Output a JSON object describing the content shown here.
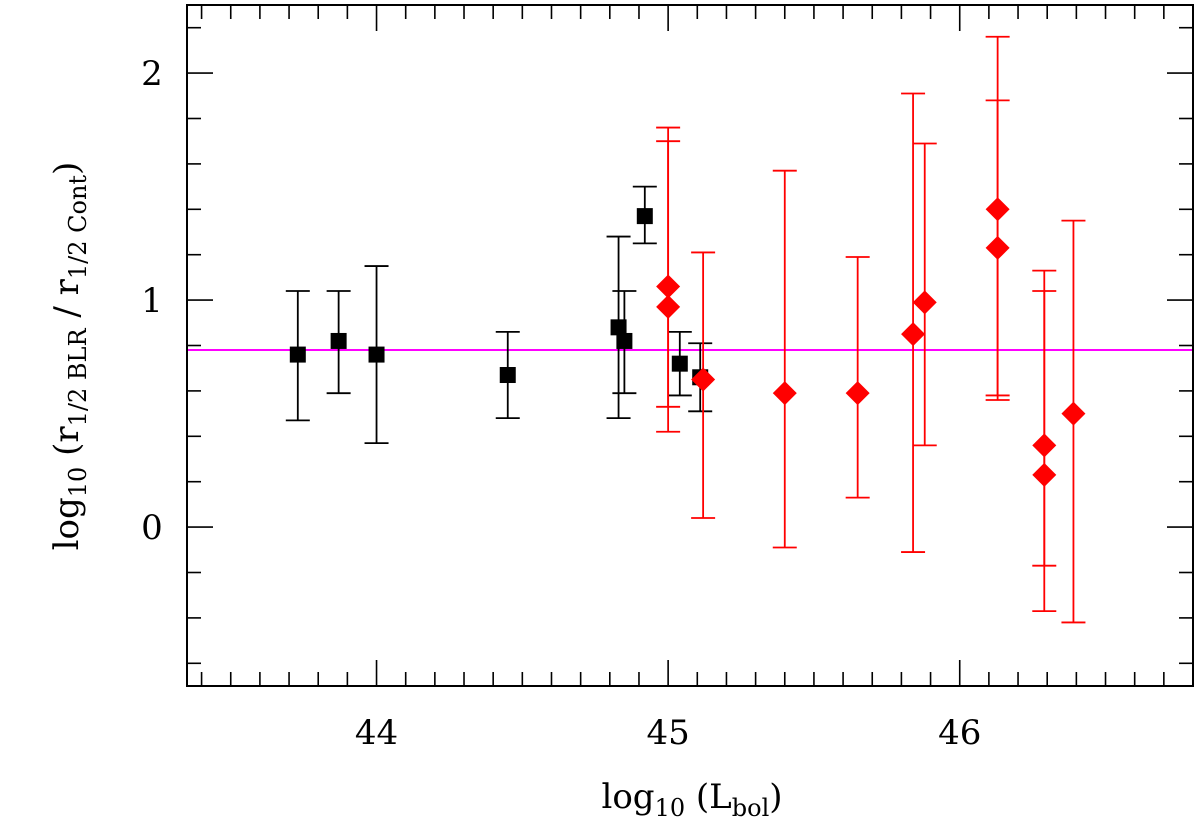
{
  "chart_data": {
    "type": "scatter",
    "title": "",
    "xlabel": {
      "base": "log",
      "sub": "10",
      "mid": " (L",
      "sub2": "bol",
      "end": ")"
    },
    "ylabel": {
      "base": "log",
      "sub": "10",
      "p1": " (r",
      "sub2": "1/2 BLR",
      "p2": " / r",
      "sub3": "1/2 Cont",
      "end": ")"
    },
    "xlim": [
      43.35,
      46.8
    ],
    "ylim": [
      -0.7,
      2.3
    ],
    "x_ticks": [
      44,
      45,
      46
    ],
    "x_tick_labels": [
      "44",
      "45",
      "46"
    ],
    "y_ticks": [
      0,
      1,
      2
    ],
    "y_tick_labels": [
      "0",
      "1",
      "2"
    ],
    "x_minor_step": 0.1,
    "y_minor_step": 0.2,
    "reference_line": {
      "y": 0.78,
      "color": "#ff00ff"
    },
    "series": [
      {
        "color": "#000000",
        "marker": "square",
        "points": [
          {
            "x": 43.73,
            "y": 0.76,
            "lo": 0.47,
            "hi": 1.04
          },
          {
            "x": 43.87,
            "y": 0.82,
            "lo": 0.59,
            "hi": 1.04
          },
          {
            "x": 44.0,
            "y": 0.76,
            "lo": 0.37,
            "hi": 1.15
          },
          {
            "x": 44.45,
            "y": 0.67,
            "lo": 0.48,
            "hi": 0.86
          },
          {
            "x": 44.83,
            "y": 0.88,
            "lo": 0.48,
            "hi": 1.28
          },
          {
            "x": 44.85,
            "y": 0.82,
            "lo": 0.59,
            "hi": 1.04
          },
          {
            "x": 44.92,
            "y": 1.37,
            "lo": 1.25,
            "hi": 1.5
          },
          {
            "x": 45.04,
            "y": 0.72,
            "lo": 0.58,
            "hi": 0.86
          },
          {
            "x": 45.11,
            "y": 0.66,
            "lo": 0.51,
            "hi": 0.81
          }
        ]
      },
      {
        "color": "#ff0000",
        "marker": "diamond",
        "points": [
          {
            "x": 45.0,
            "y": 1.06,
            "lo": 0.53,
            "hi": 1.7
          },
          {
            "x": 45.0,
            "y": 0.97,
            "lo": 0.42,
            "hi": 1.76
          },
          {
            "x": 45.12,
            "y": 0.65,
            "lo": 0.04,
            "hi": 1.21
          },
          {
            "x": 45.4,
            "y": 0.59,
            "lo": -0.09,
            "hi": 1.57
          },
          {
            "x": 45.65,
            "y": 0.59,
            "lo": 0.13,
            "hi": 1.19
          },
          {
            "x": 45.84,
            "y": 0.85,
            "lo": -0.11,
            "hi": 1.91
          },
          {
            "x": 45.88,
            "y": 0.99,
            "lo": 0.36,
            "hi": 1.69
          },
          {
            "x": 46.13,
            "y": 1.4,
            "lo": 0.56,
            "hi": 2.16
          },
          {
            "x": 46.13,
            "y": 1.23,
            "lo": 0.58,
            "hi": 1.88
          },
          {
            "x": 46.29,
            "y": 0.36,
            "lo": -0.37,
            "hi": 1.13
          },
          {
            "x": 46.29,
            "y": 0.23,
            "lo": -0.17,
            "hi": 1.04
          },
          {
            "x": 46.39,
            "y": 0.5,
            "lo": -0.42,
            "hi": 1.35
          }
        ]
      }
    ]
  }
}
